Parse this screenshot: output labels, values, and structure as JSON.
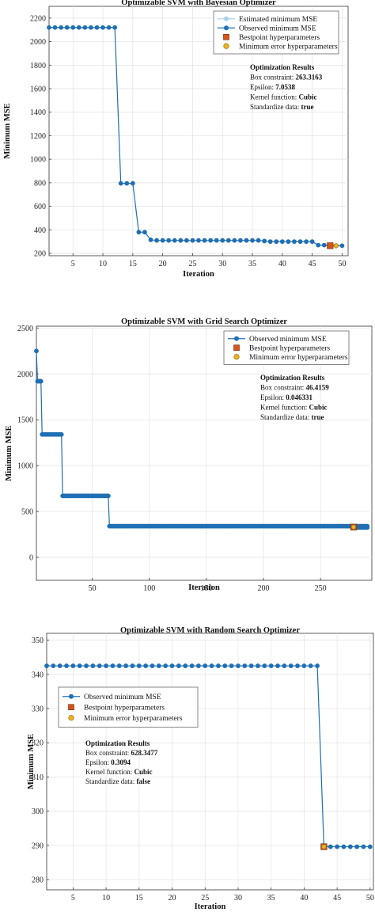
{
  "charts": [
    {
      "type": "line",
      "title": "Optimizable SVM with Bayesian Optimizer",
      "xlabel": "Iteration",
      "ylabel": "Minimum MSE",
      "xlim": [
        1,
        51
      ],
      "ylim": [
        180,
        2300
      ],
      "xticks": [
        5,
        10,
        15,
        20,
        25,
        30,
        35,
        40,
        45,
        50
      ],
      "yticks": [
        200,
        400,
        600,
        800,
        1000,
        1200,
        1400,
        1600,
        1800,
        2000,
        2200
      ],
      "grid": true,
      "legend": {
        "placement": "top-right",
        "items": [
          {
            "label": "Estimated minimum MSE",
            "marker": "circle-line",
            "color": "#a9d2ec"
          },
          {
            "label": "Observed minimum MSE",
            "marker": "circle-line",
            "color": "#1f6fb4"
          },
          {
            "label": "Bestpoint hyperparameters",
            "marker": "square",
            "color": "#d95319"
          },
          {
            "label": "Minimum error hyperparameters",
            "marker": "circle",
            "color": "#edb120"
          }
        ]
      },
      "results": {
        "heading": "Optimization Results",
        "lines": [
          {
            "label": "Box constraint: ",
            "value": "263.3163"
          },
          {
            "label": "Epsilon: ",
            "value": "7.0538"
          },
          {
            "label": "Kernel function: ",
            "value": "Cubic"
          },
          {
            "label": "Standardize data: ",
            "value": "true"
          }
        ]
      },
      "series": [
        {
          "name": "Observed minimum MSE",
          "x": [
            1,
            2,
            3,
            4,
            5,
            6,
            7,
            8,
            9,
            10,
            11,
            12,
            13,
            14,
            15,
            16,
            17,
            18,
            19,
            20,
            21,
            22,
            23,
            24,
            25,
            26,
            27,
            28,
            29,
            30,
            31,
            32,
            33,
            34,
            35,
            36,
            37,
            38,
            39,
            40,
            41,
            42,
            43,
            44,
            45,
            46,
            47,
            48,
            49,
            50
          ],
          "y": [
            2120,
            2120,
            2120,
            2120,
            2120,
            2120,
            2120,
            2120,
            2120,
            2120,
            2120,
            2120,
            795,
            795,
            795,
            380,
            380,
            315,
            310,
            310,
            310,
            310,
            310,
            310,
            310,
            310,
            310,
            310,
            310,
            310,
            310,
            310,
            310,
            310,
            310,
            310,
            305,
            300,
            300,
            300,
            300,
            300,
            300,
            300,
            300,
            270,
            270,
            265,
            265,
            265
          ]
        }
      ],
      "bestpoint": {
        "x": 48,
        "y": 265
      },
      "min_error": {
        "x": 49,
        "y": 265
      }
    },
    {
      "type": "line",
      "title": "Optimizable SVM with Grid  Search Optimizer",
      "xlabel": "Iteration",
      "ylabel": "Minimum MSE",
      "xlim": [
        1,
        295
      ],
      "ylim": [
        -250,
        2520
      ],
      "xticks": [
        50,
        100,
        150,
        200,
        250
      ],
      "yticks": [
        0,
        500,
        1000,
        1500,
        2000,
        2500
      ],
      "grid": true,
      "legend": {
        "placement": "top-right",
        "items": [
          {
            "label": "Observed minimum MSE",
            "marker": "circle-line",
            "color": "#1f6fb4"
          },
          {
            "label": "Bestpoint hyperparameters",
            "marker": "square",
            "color": "#d95319"
          },
          {
            "label": "Minimum error hyperparameters",
            "marker": "circle",
            "color": "#edb120"
          }
        ]
      },
      "results": {
        "heading": "Optimization Results",
        "lines": [
          {
            "label": "Box constraint: ",
            "value": "46.4159"
          },
          {
            "label": "Epsilon: ",
            "value": "0.046331"
          },
          {
            "label": "Kernel function: ",
            "value": "Cubic"
          },
          {
            "label": "Standardize data: ",
            "value": "true"
          }
        ]
      },
      "steps": [
        {
          "x0": 1,
          "x1": 1,
          "y": 2250
        },
        {
          "x0": 2,
          "x1": 5,
          "y": 1920
        },
        {
          "x0": 6,
          "x1": 23,
          "y": 1340
        },
        {
          "x0": 24,
          "x1": 64,
          "y": 670
        },
        {
          "x0": 65,
          "x1": 291,
          "y": 340
        },
        {
          "x0": 279,
          "x1": 291,
          "y": 325
        }
      ],
      "bestpoint": {
        "x": 279,
        "y": 330
      },
      "min_error": {
        "x": 279,
        "y": 330
      }
    },
    {
      "type": "line",
      "title": "Optimizable SVM with Random Search Optimizer",
      "xlabel": "Iteration",
      "ylabel": "Minimum MSE",
      "xlim": [
        1,
        50.5
      ],
      "ylim": [
        277,
        352
      ],
      "xticks": [
        5,
        10,
        15,
        20,
        25,
        30,
        35,
        40,
        45,
        50
      ],
      "yticks": [
        280,
        290,
        300,
        310,
        320,
        330,
        340,
        350
      ],
      "grid": true,
      "legend": {
        "placement": "top-left",
        "items": [
          {
            "label": "Observed minimum MSE",
            "marker": "circle-line",
            "color": "#1f6fb4"
          },
          {
            "label": "Bestpoint hyperparameters",
            "marker": "square",
            "color": "#d95319"
          },
          {
            "label": "Minimum error hyperparameters",
            "marker": "circle",
            "color": "#edb120"
          }
        ]
      },
      "results": {
        "heading": "Optimization Results",
        "lines": [
          {
            "label": "Box constraint: ",
            "value": "628.3477"
          },
          {
            "label": "Epsilon: ",
            "value": "0.3094"
          },
          {
            "label": "Kernel function: ",
            "value": "Cubic"
          },
          {
            "label": "Standardize data: ",
            "value": "false"
          }
        ]
      },
      "series": [
        {
          "name": "Observed minimum MSE",
          "x": [
            1,
            2,
            3,
            4,
            5,
            6,
            7,
            8,
            9,
            10,
            11,
            12,
            13,
            14,
            15,
            16,
            17,
            18,
            19,
            20,
            21,
            22,
            23,
            24,
            25,
            26,
            27,
            28,
            29,
            30,
            31,
            32,
            33,
            34,
            35,
            36,
            37,
            38,
            39,
            40,
            41,
            42,
            43,
            44,
            45,
            46,
            47,
            48,
            49,
            50
          ],
          "y": [
            342.5,
            342.5,
            342.5,
            342.5,
            342.5,
            342.5,
            342.5,
            342.5,
            342.5,
            342.5,
            342.5,
            342.5,
            342.5,
            342.5,
            342.5,
            342.5,
            342.5,
            342.5,
            342.5,
            342.5,
            342.5,
            342.5,
            342.5,
            342.5,
            342.5,
            342.5,
            342.5,
            342.5,
            342.5,
            342.5,
            342.5,
            342.5,
            342.5,
            342.5,
            342.5,
            342.5,
            342.5,
            342.5,
            342.5,
            342.5,
            342.5,
            342.5,
            289.6,
            289.6,
            289.6,
            289.6,
            289.6,
            289.6,
            289.6,
            289.6
          ]
        }
      ],
      "bestpoint": {
        "x": 43,
        "y": 289.6
      },
      "min_error": {
        "x": 43,
        "y": 289.6
      }
    }
  ]
}
